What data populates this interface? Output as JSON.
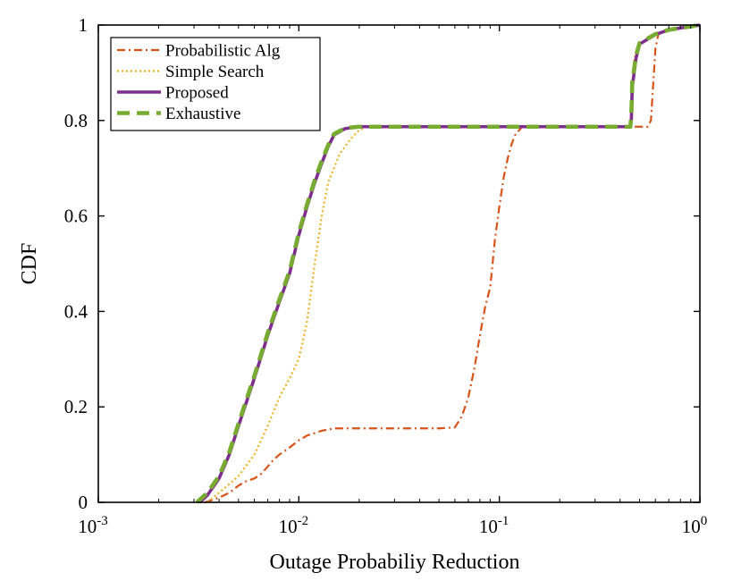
{
  "chart_data": {
    "type": "line",
    "title": "",
    "xlabel": "Outage Probabiliy Reduction",
    "ylabel": "CDF",
    "xscale": "log",
    "xlim": [
      0.001,
      1
    ],
    "ylim": [
      0,
      1
    ],
    "x_ticks": [
      {
        "value": 0.001,
        "base": "10",
        "exp": "-3"
      },
      {
        "value": 0.01,
        "base": "10",
        "exp": "-2"
      },
      {
        "value": 0.1,
        "base": "10",
        "exp": "-1"
      },
      {
        "value": 1,
        "base": "10",
        "exp": "0"
      }
    ],
    "y_ticks": [
      {
        "value": 0,
        "label": "0"
      },
      {
        "value": 0.2,
        "label": "0.2"
      },
      {
        "value": 0.4,
        "label": "0.4"
      },
      {
        "value": 0.6,
        "label": "0.6"
      },
      {
        "value": 0.8,
        "label": "0.8"
      },
      {
        "value": 1,
        "label": "1"
      }
    ],
    "grid": false,
    "legend_position": "top-left",
    "series": [
      {
        "name": "Probabilistic Alg",
        "color": "#D95319",
        "style": "dashdot",
        "points": [
          [
            0.0034,
            0.0
          ],
          [
            0.0037,
            0.005
          ],
          [
            0.004,
            0.01
          ],
          [
            0.0045,
            0.02
          ],
          [
            0.005,
            0.035
          ],
          [
            0.0055,
            0.045
          ],
          [
            0.006,
            0.05
          ],
          [
            0.0065,
            0.06
          ],
          [
            0.007,
            0.075
          ],
          [
            0.0075,
            0.09
          ],
          [
            0.008,
            0.1
          ],
          [
            0.009,
            0.115
          ],
          [
            0.01,
            0.13
          ],
          [
            0.011,
            0.14
          ],
          [
            0.012,
            0.145
          ],
          [
            0.013,
            0.15
          ],
          [
            0.015,
            0.155
          ],
          [
            0.02,
            0.155
          ],
          [
            0.03,
            0.155
          ],
          [
            0.05,
            0.155
          ],
          [
            0.06,
            0.157
          ],
          [
            0.065,
            0.18
          ],
          [
            0.07,
            0.22
          ],
          [
            0.075,
            0.28
          ],
          [
            0.08,
            0.35
          ],
          [
            0.085,
            0.41
          ],
          [
            0.09,
            0.45
          ],
          [
            0.095,
            0.55
          ],
          [
            0.1,
            0.62
          ],
          [
            0.105,
            0.68
          ],
          [
            0.11,
            0.72
          ],
          [
            0.115,
            0.75
          ],
          [
            0.12,
            0.77
          ],
          [
            0.13,
            0.787
          ],
          [
            0.2,
            0.787
          ],
          [
            0.4,
            0.787
          ],
          [
            0.55,
            0.787
          ],
          [
            0.57,
            0.8
          ],
          [
            0.58,
            0.85
          ],
          [
            0.6,
            0.95
          ],
          [
            0.62,
            0.98
          ],
          [
            0.65,
            0.985
          ],
          [
            0.8,
            0.995
          ],
          [
            1.0,
            1.0
          ]
        ]
      },
      {
        "name": "Simple Search",
        "color": "#EDB120",
        "style": "dotted",
        "points": [
          [
            0.0035,
            0.0
          ],
          [
            0.004,
            0.02
          ],
          [
            0.005,
            0.055
          ],
          [
            0.006,
            0.1
          ],
          [
            0.007,
            0.16
          ],
          [
            0.008,
            0.22
          ],
          [
            0.009,
            0.26
          ],
          [
            0.01,
            0.3
          ],
          [
            0.011,
            0.38
          ],
          [
            0.012,
            0.5
          ],
          [
            0.013,
            0.6
          ],
          [
            0.014,
            0.67
          ],
          [
            0.016,
            0.73
          ],
          [
            0.018,
            0.76
          ],
          [
            0.02,
            0.78
          ],
          [
            0.022,
            0.787
          ],
          [
            0.05,
            0.787
          ],
          [
            0.2,
            0.787
          ],
          [
            0.45,
            0.787
          ],
          [
            0.46,
            0.82
          ],
          [
            0.47,
            0.93
          ],
          [
            0.5,
            0.96
          ],
          [
            0.6,
            0.98
          ],
          [
            0.7,
            0.99
          ],
          [
            1.0,
            1.0
          ]
        ]
      },
      {
        "name": "Proposed",
        "color": "#7E2F8E",
        "style": "solid",
        "points": [
          [
            0.0032,
            0.0
          ],
          [
            0.0035,
            0.015
          ],
          [
            0.004,
            0.05
          ],
          [
            0.0045,
            0.1
          ],
          [
            0.005,
            0.16
          ],
          [
            0.006,
            0.26
          ],
          [
            0.007,
            0.35
          ],
          [
            0.008,
            0.42
          ],
          [
            0.009,
            0.48
          ],
          [
            0.01,
            0.56
          ],
          [
            0.011,
            0.62
          ],
          [
            0.012,
            0.67
          ],
          [
            0.013,
            0.71
          ],
          [
            0.014,
            0.745
          ],
          [
            0.015,
            0.77
          ],
          [
            0.017,
            0.783
          ],
          [
            0.02,
            0.787
          ],
          [
            0.05,
            0.787
          ],
          [
            0.2,
            0.787
          ],
          [
            0.45,
            0.787
          ],
          [
            0.455,
            0.8
          ],
          [
            0.46,
            0.87
          ],
          [
            0.48,
            0.93
          ],
          [
            0.5,
            0.96
          ],
          [
            0.6,
            0.98
          ],
          [
            0.7,
            0.99
          ],
          [
            1.0,
            1.0
          ]
        ]
      },
      {
        "name": "Exhaustive",
        "color": "#77AC30",
        "style": "dashed",
        "points": [
          [
            0.0031,
            0.0
          ],
          [
            0.0035,
            0.02
          ],
          [
            0.004,
            0.055
          ],
          [
            0.0045,
            0.105
          ],
          [
            0.005,
            0.165
          ],
          [
            0.006,
            0.265
          ],
          [
            0.007,
            0.355
          ],
          [
            0.008,
            0.425
          ],
          [
            0.009,
            0.485
          ],
          [
            0.01,
            0.565
          ],
          [
            0.011,
            0.625
          ],
          [
            0.012,
            0.675
          ],
          [
            0.013,
            0.715
          ],
          [
            0.014,
            0.748
          ],
          [
            0.015,
            0.772
          ],
          [
            0.017,
            0.784
          ],
          [
            0.02,
            0.787
          ],
          [
            0.05,
            0.787
          ],
          [
            0.2,
            0.787
          ],
          [
            0.45,
            0.787
          ],
          [
            0.455,
            0.81
          ],
          [
            0.46,
            0.88
          ],
          [
            0.48,
            0.935
          ],
          [
            0.5,
            0.962
          ],
          [
            0.6,
            0.981
          ],
          [
            0.7,
            0.99
          ],
          [
            1.0,
            1.0
          ]
        ]
      }
    ]
  }
}
